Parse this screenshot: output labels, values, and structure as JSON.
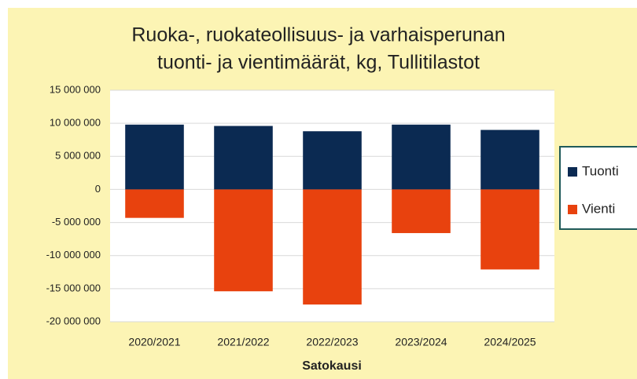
{
  "chart_data": {
    "type": "bar",
    "title": [
      "Ruoka-, ruokateollisuus- ja varhaisperunan",
      "tuonti- ja vientimäärät, kg, Tullitilastot"
    ],
    "x_label": "Satokausi",
    "categories": [
      "2020/2021",
      "2021/2022",
      "2022/2023",
      "2023/2024",
      "2024/2025"
    ],
    "series": [
      {
        "name": "Tuonti",
        "color": "#0b2a52",
        "values": [
          9800000,
          9600000,
          8800000,
          9800000,
          9000000
        ]
      },
      {
        "name": "Vienti",
        "color": "#e8420e",
        "values": [
          -4300000,
          -15400000,
          -17400000,
          -6600000,
          -12100000
        ]
      }
    ],
    "ylim": [
      -20000000,
      15000000
    ],
    "yticks": [
      {
        "value": -20000000,
        "label": "-20 000 000"
      },
      {
        "value": -15000000,
        "label": "-15 000 000"
      },
      {
        "value": -10000000,
        "label": "-10 000 000"
      },
      {
        "value": -5000000,
        "label": "-5 000 000"
      },
      0,
      {
        "value": 5000000,
        "label": "5 000 000"
      },
      {
        "value": 10000000,
        "label": "10 000 000"
      },
      {
        "value": 15000000,
        "label": "15 000 000"
      }
    ],
    "grid": true,
    "stacked": true,
    "legend": "right"
  }
}
